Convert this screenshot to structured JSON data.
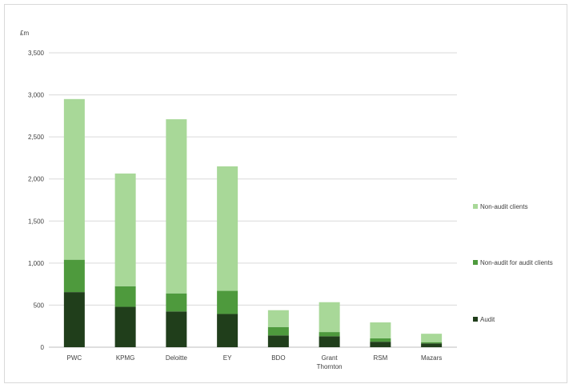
{
  "chart_data": {
    "type": "bar",
    "stacked": true,
    "title": "",
    "xlabel": "",
    "ylabel": "£m",
    "ylim": [
      0,
      3500
    ],
    "yticks": [
      0,
      500,
      1000,
      1500,
      2000,
      2500,
      3000,
      3500
    ],
    "ytick_labels": [
      "0",
      "500",
      "1,000",
      "1,500",
      "2,000",
      "2,500",
      "3,000",
      "3,500"
    ],
    "grid": true,
    "legend_position": "right",
    "categories": [
      "PWC",
      "KPMG",
      "Deloitte",
      "EY",
      "BDO",
      "Grant Thornton",
      "RSM",
      "Mazars"
    ],
    "category_display": [
      [
        "PWC"
      ],
      [
        "KPMG"
      ],
      [
        "Deloitte"
      ],
      [
        "EY"
      ],
      [
        "BDO"
      ],
      [
        "Grant",
        "Thornton"
      ],
      [
        "RSM"
      ],
      [
        "Mazars"
      ]
    ],
    "series": [
      {
        "name": "Audit",
        "color": "#203e1b",
        "values": [
          655,
          480,
          425,
          395,
          140,
          130,
          65,
          45
        ]
      },
      {
        "name": "Non-audit for audit clients",
        "color": "#4e9a3d",
        "values": [
          385,
          245,
          215,
          275,
          100,
          50,
          40,
          15
        ]
      },
      {
        "name": "Non-audit clients",
        "color": "#a8d898",
        "values": [
          1910,
          1340,
          2070,
          1480,
          200,
          355,
          190,
          100
        ]
      }
    ],
    "legend_order": [
      "Non-audit clients",
      "Non-audit for audit clients",
      "Audit"
    ]
  }
}
